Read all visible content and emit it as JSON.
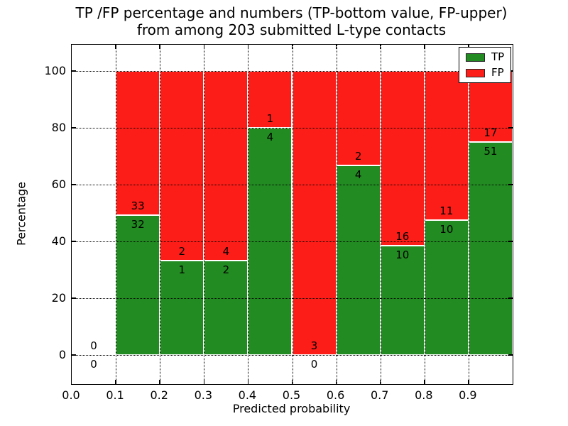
{
  "title": {
    "line1": "TP /FP percentage and numbers (TP-bottom value, FP-upper)",
    "line2": "from among 203 submitted L-type contacts"
  },
  "chart_data": {
    "type": "bar",
    "stacked": true,
    "title": "TP /FP percentage and numbers (TP-bottom value, FP-upper)\nfrom among 203 submitted L-type contacts",
    "xlabel": "Predicted probability",
    "ylabel": "Percentage",
    "xlim": [
      0.0,
      1.0
    ],
    "ylim": [
      -10.25,
      109.25
    ],
    "grid": true,
    "total_submitted": 203,
    "xticks": [
      "0.0",
      "0.1",
      "0.2",
      "0.3",
      "0.4",
      "0.5",
      "0.6",
      "0.7",
      "0.8",
      "0.9"
    ],
    "xtick_values": [
      0.0,
      0.1,
      0.2,
      0.3,
      0.4,
      0.5,
      0.6,
      0.7,
      0.8,
      0.9
    ],
    "yticks": [
      "0",
      "20",
      "40",
      "60",
      "80",
      "100"
    ],
    "ytick_values": [
      0,
      20,
      40,
      60,
      80,
      100
    ],
    "legend": {
      "position": "upper right",
      "entries": [
        {
          "label": "TP",
          "color": "#228b22"
        },
        {
          "label": "FP",
          "color": "#fc1d18"
        }
      ]
    },
    "bins": [
      {
        "x_start": 0.0,
        "x_end": 0.1,
        "tp": 0,
        "fp": 0,
        "tp_pct": 0.0,
        "fp_pct": 0.0
      },
      {
        "x_start": 0.1,
        "x_end": 0.2,
        "tp": 32,
        "fp": 33,
        "tp_pct": 49.23,
        "fp_pct": 50.77
      },
      {
        "x_start": 0.2,
        "x_end": 0.3,
        "tp": 1,
        "fp": 2,
        "tp_pct": 33.33,
        "fp_pct": 66.67
      },
      {
        "x_start": 0.3,
        "x_end": 0.4,
        "tp": 2,
        "fp": 4,
        "tp_pct": 33.33,
        "fp_pct": 66.67
      },
      {
        "x_start": 0.4,
        "x_end": 0.5,
        "tp": 4,
        "fp": 1,
        "tp_pct": 80.0,
        "fp_pct": 20.0
      },
      {
        "x_start": 0.5,
        "x_end": 0.6,
        "tp": 0,
        "fp": 3,
        "tp_pct": 0.0,
        "fp_pct": 100.0
      },
      {
        "x_start": 0.6,
        "x_end": 0.7,
        "tp": 4,
        "fp": 2,
        "tp_pct": 66.67,
        "fp_pct": 33.33
      },
      {
        "x_start": 0.7,
        "x_end": 0.8,
        "tp": 10,
        "fp": 16,
        "tp_pct": 38.46,
        "fp_pct": 61.54
      },
      {
        "x_start": 0.8,
        "x_end": 0.9,
        "tp": 10,
        "fp": 11,
        "tp_pct": 47.62,
        "fp_pct": 52.38
      },
      {
        "x_start": 0.9,
        "x_end": 1.0,
        "tp": 51,
        "fp": 17,
        "tp_pct": 75.0,
        "fp_pct": 25.0
      }
    ],
    "colors": {
      "tp": "#228b22",
      "fp": "#fc1d18",
      "grid": "#000000",
      "frame": "#000000",
      "background": "#ffffff"
    }
  }
}
